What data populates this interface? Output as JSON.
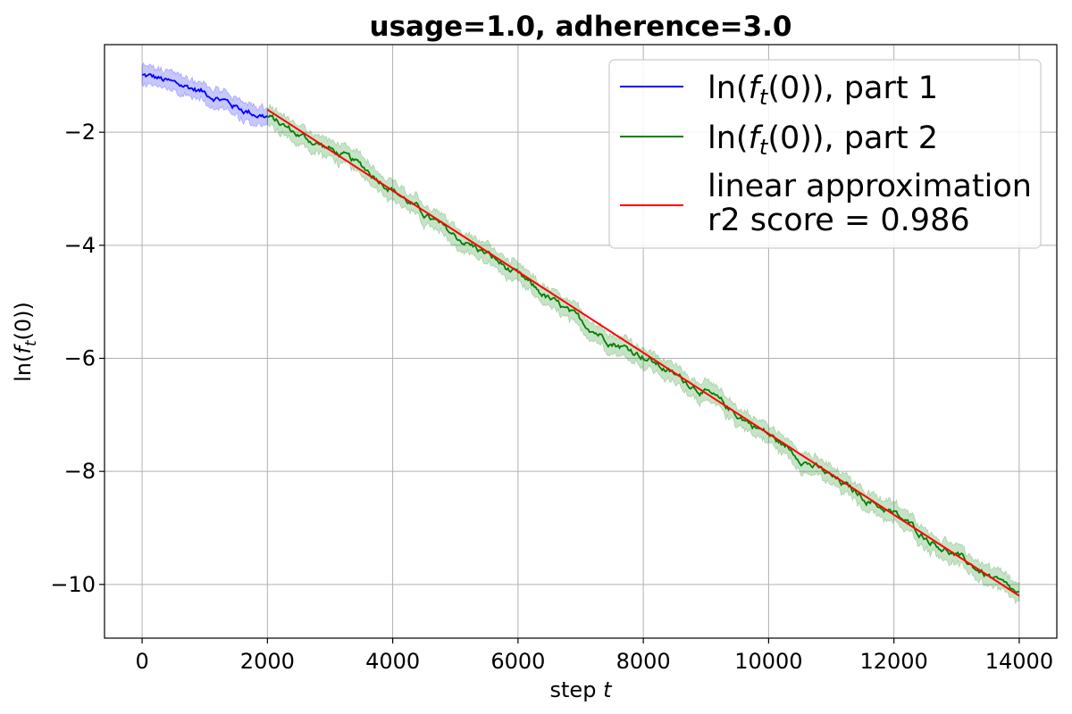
{
  "chart_data": {
    "type": "line",
    "title": "usage=1.0, adherence=3.0",
    "xlabel": "step t",
    "ylabel": "ln(f_t(0))",
    "xlim": [
      -600,
      14600
    ],
    "ylim": [
      -10.95,
      -0.45
    ],
    "xticks": [
      0,
      2000,
      4000,
      6000,
      8000,
      10000,
      12000,
      14000
    ],
    "yticks": [
      -2,
      -4,
      -6,
      -8,
      -10
    ],
    "xtick_labels": [
      "0",
      "2000",
      "4000",
      "6000",
      "8000",
      "10000",
      "12000",
      "14000"
    ],
    "ytick_labels": [
      "−2",
      "−4",
      "−6",
      "−8",
      "−10"
    ],
    "grid": true,
    "legend_position": "top-right",
    "series": [
      {
        "name": "ln(f_t(0)), part 1",
        "color": "#0000ff",
        "band": true,
        "x": [
          0,
          250,
          500,
          750,
          1000,
          1250,
          1500,
          1750,
          2000
        ],
        "y": [
          -1.0,
          -1.05,
          -1.15,
          -1.2,
          -1.3,
          -1.4,
          -1.55,
          -1.65,
          -1.72
        ]
      },
      {
        "name": "ln(f_t(0)), part 2",
        "color": "#008000",
        "band": true,
        "x": [
          2000,
          2500,
          3000,
          3500,
          4000,
          4500,
          5000,
          5500,
          6000,
          6500,
          7000,
          7500,
          8000,
          8500,
          9000,
          9500,
          10000,
          10500,
          11000,
          11500,
          12000,
          12500,
          13000,
          13500,
          14000
        ],
        "y": [
          -1.72,
          -2.05,
          -2.3,
          -2.6,
          -3.0,
          -3.45,
          -3.85,
          -4.15,
          -4.55,
          -4.95,
          -5.35,
          -5.7,
          -5.95,
          -6.3,
          -6.6,
          -7.0,
          -7.35,
          -7.75,
          -8.1,
          -8.45,
          -8.75,
          -9.15,
          -9.5,
          -9.85,
          -10.2
        ]
      },
      {
        "name": "linear approximation\nr2 score = 0.986",
        "color": "#ff0000",
        "band": false,
        "x": [
          2000,
          14000
        ],
        "y": [
          -1.6,
          -10.2
        ]
      }
    ]
  },
  "legend": {
    "item1_prefix": "ln(",
    "item1_f": "f",
    "item1_sub": "t",
    "item1_suffix": "(0)), part 1",
    "item2_prefix": "ln(",
    "item2_f": "f",
    "item2_sub": "t",
    "item2_suffix": "(0)), part 2",
    "item3_line1": "linear approximation",
    "item3_line2": "r2 score = 0.986"
  },
  "axis_text": {
    "xlabel_main": "step ",
    "xlabel_var": "t",
    "ylabel_prefix": "ln(",
    "ylabel_f": "f",
    "ylabel_sub": "t",
    "ylabel_suffix": "(0))"
  }
}
